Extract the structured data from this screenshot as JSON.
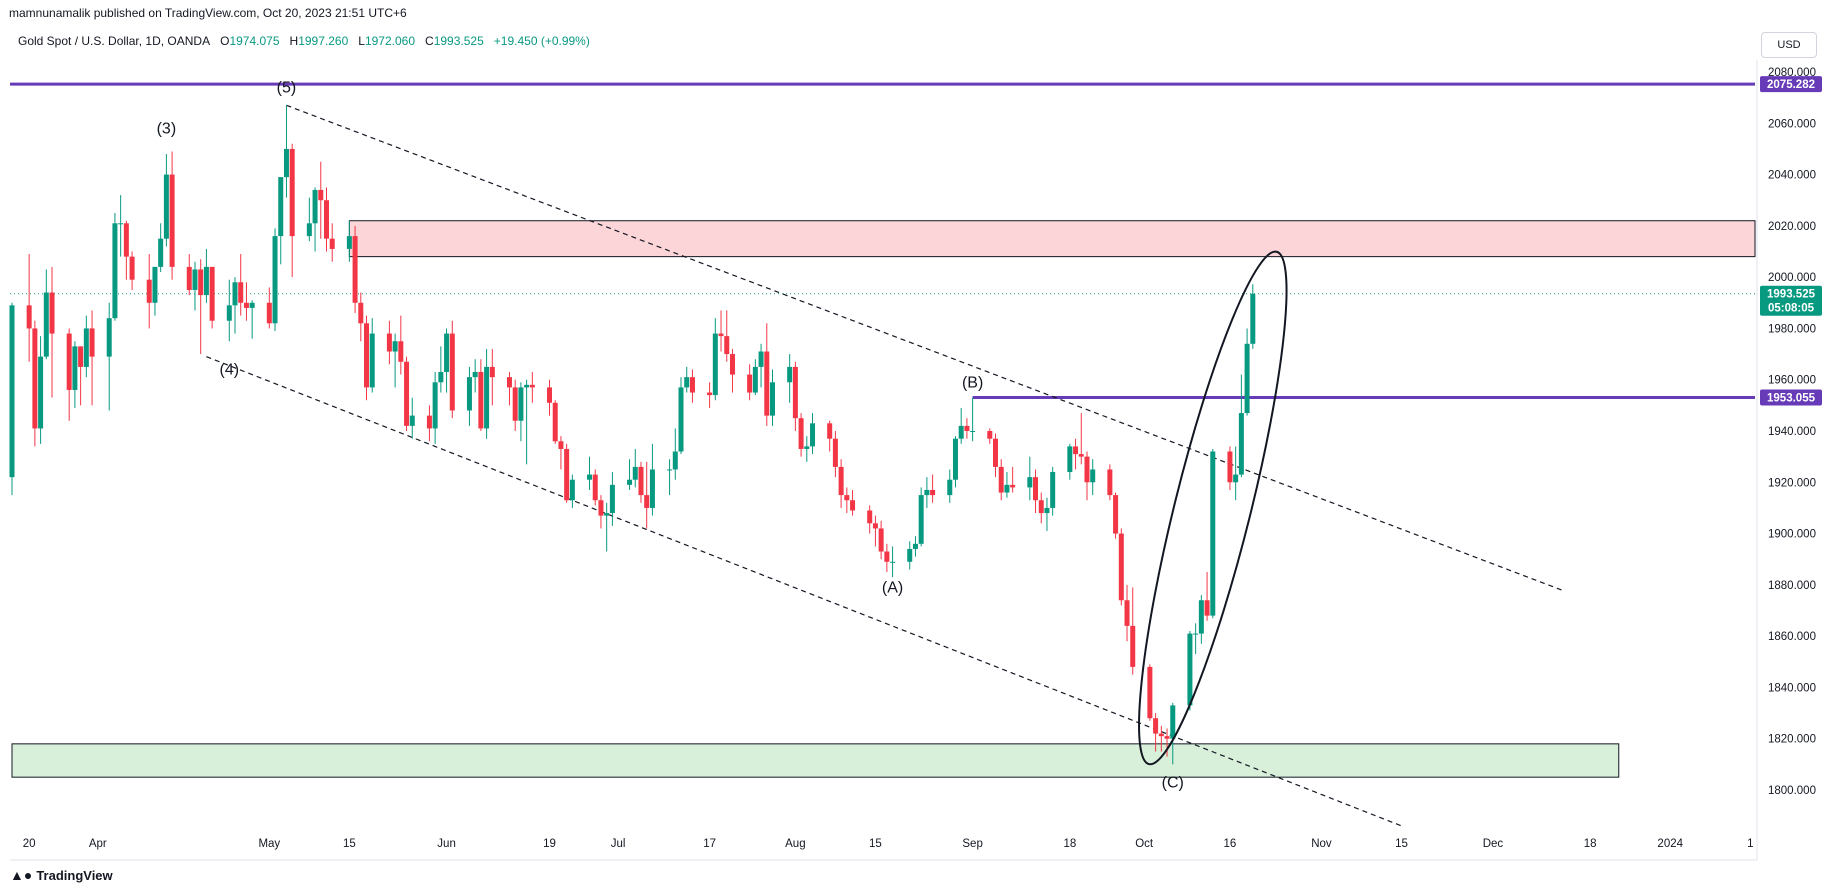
{
  "header": {
    "publisher": "mamnunamalik published on TradingView.com, Oct 20, 2023 21:51 UTC+6",
    "symbol": "Gold Spot / U.S. Dollar, 1D, OANDA",
    "open_key": "O",
    "open": "1974.075",
    "high_key": "H",
    "high": "1997.260",
    "low_key": "L",
    "low": "1972.060",
    "close_key": "C",
    "close": "1993.525",
    "change": "+19.450 (+0.99%)",
    "currency": "USD"
  },
  "footer": {
    "brand": "TradingView",
    "logo_icon": "tradingview-logo-icon"
  },
  "colors": {
    "up": "#089981",
    "down": "#f23645",
    "level": "#673ab7",
    "supply": "#fcd5d9",
    "demand": "#d8efd9"
  },
  "chart_data": {
    "type": "candlestick",
    "y_axis": {
      "ylim": [
        1795,
        2085
      ],
      "ticks": [
        1800,
        1820,
        1840,
        1860,
        1880,
        1900,
        1920,
        1940,
        1960,
        1980,
        2000,
        2020,
        2040,
        2060,
        2080
      ],
      "tick_labels": [
        "1800.000",
        "1820.000",
        "1840.000",
        "1860.000",
        "1880.000",
        "1900.000",
        "1920.000",
        "1940.000",
        "1960.000",
        "1980.000",
        "2000.000",
        "2020.000",
        "2040.000",
        "2060.000",
        "2080.000"
      ]
    },
    "x_axis": {
      "labels": [
        "20",
        "Apr",
        "May",
        "15",
        "Jun",
        "19",
        "Jul",
        "17",
        "Aug",
        "15",
        "Sep",
        "18",
        "Oct",
        "16",
        "Nov",
        "15",
        "Dec",
        "18",
        "2024",
        "1"
      ],
      "label_dates": [
        "2023-03-20",
        "2023-04-01",
        "2023-05-01",
        "2023-05-15",
        "2023-06-01",
        "2023-06-19",
        "2023-07-01",
        "2023-07-17",
        "2023-08-01",
        "2023-08-15",
        "2023-09-01",
        "2023-09-18",
        "2023-10-01",
        "2023-10-16",
        "2023-11-01",
        "2023-11-15",
        "2023-12-01",
        "2023-12-18",
        "2024-01-01",
        "2024-01-15"
      ]
    },
    "candles": [
      [
        "2023-03-17",
        1922,
        1990,
        1915,
        1989
      ],
      [
        "2023-03-20",
        1989,
        2009,
        1967,
        1980
      ],
      [
        "2023-03-21",
        1980,
        1983,
        1934,
        1941
      ],
      [
        "2023-03-22",
        1941,
        1977,
        1935,
        1969
      ],
      [
        "2023-03-23",
        1969,
        2003,
        1968,
        1994
      ],
      [
        "2023-03-24",
        1994,
        2004,
        1953,
        1978
      ],
      [
        "2023-03-27",
        1978,
        1980,
        1944,
        1956
      ],
      [
        "2023-03-28",
        1956,
        1975,
        1949,
        1973
      ],
      [
        "2023-03-29",
        1973,
        1973,
        1950,
        1965
      ],
      [
        "2023-03-30",
        1965,
        1985,
        1961,
        1980
      ],
      [
        "2023-03-31",
        1980,
        1987,
        1950,
        1969
      ],
      [
        "2023-04-03",
        1969,
        1990,
        1948,
        1984
      ],
      [
        "2023-04-04",
        1984,
        2025,
        1983,
        2021
      ],
      [
        "2023-04-05",
        2021,
        2032,
        2008,
        2021
      ],
      [
        "2023-04-06",
        2021,
        2022,
        1999,
        2008
      ],
      [
        "2023-04-07",
        2008,
        2010,
        1995,
        1999
      ],
      [
        "2023-04-10",
        1999,
        2009,
        1980,
        1990
      ],
      [
        "2023-04-11",
        1990,
        2004,
        1985,
        2004
      ],
      [
        "2023-04-12",
        2004,
        2021,
        2002,
        2015
      ],
      [
        "2023-04-13",
        2015,
        2048,
        2012,
        2040
      ],
      [
        "2023-04-14",
        2040,
        2049,
        1999,
        2004
      ],
      [
        "2023-04-17",
        2004,
        2009,
        1993,
        1995
      ],
      [
        "2023-04-18",
        1995,
        2006,
        1987,
        2003
      ],
      [
        "2023-04-19",
        2003,
        2007,
        1970,
        1993
      ],
      [
        "2023-04-20",
        1993,
        2011,
        1990,
        2004
      ],
      [
        "2023-04-21",
        2004,
        2004,
        1980,
        1983
      ],
      [
        "2023-04-24",
        1983,
        1999,
        1975,
        1989
      ],
      [
        "2023-04-25",
        1989,
        2000,
        1978,
        1998
      ],
      [
        "2023-04-26",
        1998,
        2009,
        1985,
        1990
      ],
      [
        "2023-04-27",
        1990,
        1998,
        1983,
        1988
      ],
      [
        "2023-04-28",
        1988,
        1991,
        1976,
        1990
      ],
      [
        "2023-05-01",
        1990,
        1996,
        1980,
        1982
      ],
      [
        "2023-05-02",
        1982,
        2019,
        1979,
        2016
      ],
      [
        "2023-05-03",
        2016,
        2039,
        2005,
        2039
      ],
      [
        "2023-05-04",
        2039,
        2067,
        2031,
        2050
      ],
      [
        "2023-05-05",
        2050,
        2052,
        2000,
        2016
      ],
      [
        "2023-05-08",
        2016,
        2031,
        2014,
        2021
      ],
      [
        "2023-05-09",
        2021,
        2035,
        2010,
        2034
      ],
      [
        "2023-05-10",
        2034,
        2045,
        2015,
        2030
      ],
      [
        "2023-05-11",
        2030,
        2035,
        2010,
        2015
      ],
      [
        "2023-05-12",
        2015,
        2021,
        2006,
        2011
      ],
      [
        "2023-05-15",
        2011,
        2022,
        2006,
        2016
      ],
      [
        "2023-05-16",
        2016,
        2020,
        1986,
        1990
      ],
      [
        "2023-05-17",
        1990,
        1994,
        1975,
        1982
      ],
      [
        "2023-05-18",
        1982,
        1985,
        1952,
        1957
      ],
      [
        "2023-05-19",
        1957,
        1984,
        1955,
        1978
      ],
      [
        "2023-05-22",
        1978,
        1983,
        1966,
        1971
      ],
      [
        "2023-05-23",
        1971,
        1978,
        1957,
        1975
      ],
      [
        "2023-05-24",
        1975,
        1985,
        1962,
        1967
      ],
      [
        "2023-05-25",
        1967,
        1969,
        1940,
        1942
      ],
      [
        "2023-05-26",
        1942,
        1953,
        1937,
        1946
      ],
      [
        "2023-05-29",
        1946,
        1950,
        1936,
        1941
      ],
      [
        "2023-05-30",
        1941,
        1963,
        1935,
        1959
      ],
      [
        "2023-05-31",
        1959,
        1973,
        1955,
        1963
      ],
      [
        "2023-06-01",
        1963,
        1980,
        1955,
        1978
      ],
      [
        "2023-06-02",
        1978,
        1983,
        1945,
        1948
      ],
      [
        "2023-06-05",
        1948,
        1965,
        1942,
        1961
      ],
      [
        "2023-06-06",
        1961,
        1968,
        1955,
        1963
      ],
      [
        "2023-06-07",
        1963,
        1968,
        1940,
        1941
      ],
      [
        "2023-06-08",
        1941,
        1972,
        1937,
        1965
      ],
      [
        "2023-06-09",
        1965,
        1972,
        1950,
        1961
      ],
      [
        "2023-06-12",
        1961,
        1963,
        1950,
        1957
      ],
      [
        "2023-06-13",
        1957,
        1960,
        1940,
        1944
      ],
      [
        "2023-06-14",
        1944,
        1959,
        1936,
        1957
      ],
      [
        "2023-06-15",
        1957,
        1960,
        1927,
        1958
      ],
      [
        "2023-06-16",
        1958,
        1963,
        1951,
        1957
      ],
      [
        "2023-06-19",
        1957,
        1960,
        1946,
        1951
      ],
      [
        "2023-06-20",
        1951,
        1952,
        1935,
        1936
      ],
      [
        "2023-06-21",
        1936,
        1938,
        1925,
        1933
      ],
      [
        "2023-06-22",
        1933,
        1935,
        1912,
        1913
      ],
      [
        "2023-06-23",
        1913,
        1923,
        1910,
        1921
      ],
      [
        "2023-06-26",
        1921,
        1930,
        1917,
        1923
      ],
      [
        "2023-06-27",
        1923,
        1925,
        1911,
        1913
      ],
      [
        "2023-06-28",
        1913,
        1915,
        1902,
        1907
      ],
      [
        "2023-06-29",
        1907,
        1912,
        1893,
        1908
      ],
      [
        "2023-06-30",
        1908,
        1924,
        1903,
        1919
      ],
      [
        "2023-07-03",
        1919,
        1929,
        1917,
        1921
      ],
      [
        "2023-07-04",
        1921,
        1933,
        1918,
        1926
      ],
      [
        "2023-07-05",
        1926,
        1928,
        1912,
        1915
      ],
      [
        "2023-07-06",
        1915,
        1928,
        1902,
        1910
      ],
      [
        "2023-07-07",
        1910,
        1935,
        1907,
        1925
      ],
      [
        "2023-07-10",
        1925,
        1929,
        1915,
        1925
      ],
      [
        "2023-07-11",
        1925,
        1941,
        1921,
        1932
      ],
      [
        "2023-07-12",
        1932,
        1961,
        1931,
        1957
      ],
      [
        "2023-07-13",
        1957,
        1965,
        1955,
        1961
      ],
      [
        "2023-07-14",
        1961,
        1964,
        1951,
        1955
      ],
      [
        "2023-07-17",
        1955,
        1959,
        1949,
        1954
      ],
      [
        "2023-07-18",
        1954,
        1984,
        1952,
        1978
      ],
      [
        "2023-07-19",
        1978,
        1987,
        1971,
        1977
      ],
      [
        "2023-07-20",
        1977,
        1987,
        1967,
        1970
      ],
      [
        "2023-07-21",
        1970,
        1972,
        1955,
        1962
      ],
      [
        "2023-07-24",
        1962,
        1966,
        1952,
        1955
      ],
      [
        "2023-07-25",
        1955,
        1968,
        1954,
        1965
      ],
      [
        "2023-07-26",
        1965,
        1974,
        1957,
        1971
      ],
      [
        "2023-07-27",
        1971,
        1982,
        1942,
        1946
      ],
      [
        "2023-07-28",
        1946,
        1964,
        1942,
        1959
      ],
      [
        "2023-07-31",
        1959,
        1970,
        1951,
        1965
      ],
      [
        "2023-08-01",
        1965,
        1967,
        1940,
        1945
      ],
      [
        "2023-08-02",
        1945,
        1947,
        1930,
        1933
      ],
      [
        "2023-08-03",
        1933,
        1938,
        1928,
        1934
      ],
      [
        "2023-08-04",
        1934,
        1947,
        1931,
        1943
      ],
      [
        "2023-08-07",
        1943,
        1944,
        1932,
        1937
      ],
      [
        "2023-08-08",
        1937,
        1940,
        1922,
        1926
      ],
      [
        "2023-08-09",
        1926,
        1929,
        1910,
        1915
      ],
      [
        "2023-08-10",
        1915,
        1918,
        1908,
        1913
      ],
      [
        "2023-08-11",
        1913,
        1917,
        1907,
        1909
      ],
      [
        "2023-08-14",
        1909,
        1911,
        1900,
        1904
      ],
      [
        "2023-08-15",
        1904,
        1907,
        1895,
        1902
      ],
      [
        "2023-08-16",
        1902,
        1905,
        1890,
        1893
      ],
      [
        "2023-08-17",
        1893,
        1896,
        1885,
        1889
      ],
      [
        "2023-08-18",
        1889,
        1895,
        1883,
        1889
      ],
      [
        "2023-08-21",
        1889,
        1897,
        1886,
        1894
      ],
      [
        "2023-08-22",
        1894,
        1899,
        1891,
        1896
      ],
      [
        "2023-08-23",
        1896,
        1918,
        1895,
        1915
      ],
      [
        "2023-08-24",
        1915,
        1922,
        1910,
        1917
      ],
      [
        "2023-08-25",
        1917,
        1923,
        1912,
        1915
      ],
      [
        "2023-08-28",
        1915,
        1925,
        1912,
        1921
      ],
      [
        "2023-08-29",
        1921,
        1938,
        1918,
        1937
      ],
      [
        "2023-08-30",
        1937,
        1949,
        1935,
        1942
      ],
      [
        "2023-08-31",
        1942,
        1945,
        1937,
        1940
      ],
      [
        "2023-09-01",
        1940,
        1953,
        1936,
        1940
      ],
      [
        "2023-09-04",
        1940,
        1941,
        1935,
        1937
      ],
      [
        "2023-09-05",
        1937,
        1939,
        1922,
        1926
      ],
      [
        "2023-09-06",
        1926,
        1929,
        1913,
        1916
      ],
      [
        "2023-09-07",
        1916,
        1924,
        1914,
        1919
      ],
      [
        "2023-09-08",
        1919,
        1926,
        1916,
        1918
      ],
      [
        "2023-09-11",
        1918,
        1930,
        1913,
        1922
      ],
      [
        "2023-09-12",
        1922,
        1925,
        1908,
        1913
      ],
      [
        "2023-09-13",
        1913,
        1916,
        1904,
        1908
      ],
      [
        "2023-09-14",
        1908,
        1914,
        1901,
        1910
      ],
      [
        "2023-09-15",
        1910,
        1926,
        1907,
        1924
      ],
      [
        "2023-09-18",
        1924,
        1935,
        1921,
        1934
      ],
      [
        "2023-09-19",
        1934,
        1937,
        1925,
        1931
      ],
      [
        "2023-09-20",
        1931,
        1947,
        1927,
        1930
      ],
      [
        "2023-09-21",
        1930,
        1932,
        1913,
        1920
      ],
      [
        "2023-09-22",
        1920,
        1929,
        1915,
        1925
      ],
      [
        "2023-09-25",
        1925,
        1927,
        1913,
        1915
      ],
      [
        "2023-09-26",
        1915,
        1916,
        1898,
        1900
      ],
      [
        "2023-09-27",
        1900,
        1902,
        1872,
        1874
      ],
      [
        "2023-09-28",
        1874,
        1880,
        1858,
        1864
      ],
      [
        "2023-09-29",
        1864,
        1879,
        1845,
        1848
      ],
      [
        "2023-10-02",
        1848,
        1849,
        1827,
        1828
      ],
      [
        "2023-10-03",
        1828,
        1830,
        1815,
        1822
      ],
      [
        "2023-10-04",
        1822,
        1825,
        1815,
        1821
      ],
      [
        "2023-10-05",
        1821,
        1824,
        1813,
        1820
      ],
      [
        "2023-10-06",
        1820,
        1834,
        1810,
        1833
      ],
      [
        "2023-10-09",
        1833,
        1862,
        1831,
        1861
      ],
      [
        "2023-10-10",
        1861,
        1865,
        1853,
        1861
      ],
      [
        "2023-10-11",
        1861,
        1876,
        1857,
        1874
      ],
      [
        "2023-10-12",
        1874,
        1885,
        1866,
        1868
      ],
      [
        "2023-10-13",
        1868,
        1933,
        1867,
        1932
      ],
      [
        "2023-10-16",
        1932,
        1934,
        1917,
        1920
      ],
      [
        "2023-10-17",
        1920,
        1934,
        1913,
        1923
      ],
      [
        "2023-10-18",
        1923,
        1962,
        1922,
        1947
      ],
      [
        "2023-10-19",
        1947,
        1980,
        1946,
        1974
      ],
      [
        "2023-10-20",
        1974,
        1997.26,
        1972.06,
        1993.525
      ]
    ],
    "horizontal_levels": [
      {
        "price": 2075.282,
        "label": "2075.282"
      },
      {
        "price": 1953.055,
        "label": "1953.055"
      }
    ],
    "last_price": {
      "price": 1993.525,
      "label": "1993.525",
      "countdown": "05:08:05"
    },
    "zones": [
      {
        "kind": "supply",
        "price_low": 2008,
        "price_high": 2022,
        "from": "2023-05-15",
        "to": "2024-01-31"
      },
      {
        "kind": "demand",
        "price_low": 1805,
        "price_high": 1818,
        "from": "2023-03-17",
        "to": "2023-12-23"
      }
    ],
    "trendlines": [
      {
        "style": "dashed",
        "from": [
          "2023-05-04",
          2067
        ],
        "to": [
          "2023-12-13",
          1878
        ]
      },
      {
        "style": "dashed",
        "from": [
          "2023-04-20",
          1969
        ],
        "to": [
          "2023-11-15",
          1786
        ]
      }
    ],
    "wave_labels": [
      {
        "text": "(3)",
        "date": "2023-04-13",
        "price": 2056
      },
      {
        "text": "(4)",
        "date": "2023-04-24",
        "price": 1962
      },
      {
        "text": "(5)",
        "date": "2023-05-04",
        "price": 2072
      },
      {
        "text": "(A)",
        "date": "2023-08-18",
        "price": 1877
      },
      {
        "text": "(B)",
        "date": "2023-09-01",
        "price": 1957
      },
      {
        "text": "(C)",
        "date": "2023-10-06",
        "price": 1801
      }
    ],
    "ellipse": {
      "center": [
        "2023-10-13",
        1910
      ],
      "note": "rotated ellipse highlighting the rally from (C)"
    }
  }
}
